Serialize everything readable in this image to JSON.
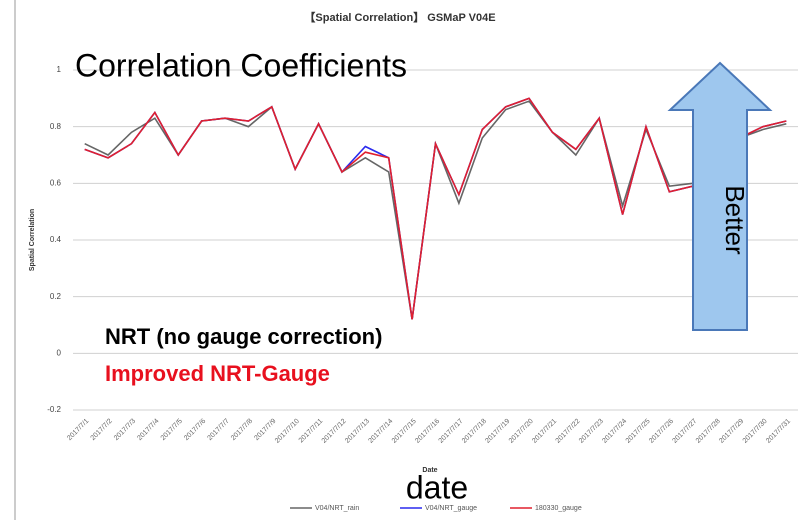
{
  "chart_data": {
    "type": "line",
    "title": "【Spatial Correlation】 GSMaP V04E",
    "y_label": "Spatial Correlation",
    "x_label": "Date",
    "categories": [
      "2017/7/1",
      "2017/7/2",
      "2017/7/3",
      "2017/7/4",
      "2017/7/5",
      "2017/7/6",
      "2017/7/7",
      "2017/7/8",
      "2017/7/9",
      "2017/7/10",
      "2017/7/11",
      "2017/7/12",
      "2017/7/13",
      "2017/7/14",
      "2017/7/15",
      "2017/7/16",
      "2017/7/17",
      "2017/7/18",
      "2017/7/19",
      "2017/7/20",
      "2017/7/21",
      "2017/7/22",
      "2017/7/23",
      "2017/7/24",
      "2017/7/25",
      "2017/7/26",
      "2017/7/27",
      "2017/7/28",
      "2017/7/29",
      "2017/7/30",
      "2017/7/31"
    ],
    "series": [
      {
        "name": "V04/NRT_rain",
        "color": "#666666",
        "values": [
          0.74,
          0.7,
          0.78,
          0.83,
          0.7,
          0.82,
          0.83,
          0.8,
          0.87,
          0.65,
          0.81,
          0.64,
          0.69,
          0.64,
          0.12,
          0.74,
          0.53,
          0.76,
          0.86,
          0.89,
          0.78,
          0.7,
          0.83,
          0.52,
          0.79,
          0.59,
          0.6,
          0.7,
          0.76,
          0.79,
          0.81
        ]
      },
      {
        "name": "V04/NRT_gauge",
        "color": "#2a2aee",
        "values": [
          0.72,
          0.69,
          0.74,
          0.85,
          0.7,
          0.82,
          0.83,
          0.82,
          0.87,
          0.65,
          0.81,
          0.64,
          0.73,
          0.69,
          0.12,
          0.74,
          0.56,
          0.79,
          0.87,
          0.9,
          0.78,
          0.72,
          0.83,
          0.49,
          0.8,
          0.57,
          0.59,
          0.7,
          0.76,
          0.8,
          0.82
        ]
      },
      {
        "name": "180330_gauge",
        "color": "#e0202e",
        "values": [
          0.72,
          0.69,
          0.74,
          0.85,
          0.7,
          0.82,
          0.83,
          0.82,
          0.87,
          0.65,
          0.81,
          0.64,
          0.71,
          0.69,
          0.12,
          0.74,
          0.56,
          0.79,
          0.87,
          0.9,
          0.78,
          0.72,
          0.83,
          0.49,
          0.8,
          0.57,
          0.59,
          0.7,
          0.76,
          0.8,
          0.82
        ]
      }
    ],
    "ylim": [
      -0.2,
      1
    ],
    "yticks": [
      -0.2,
      0,
      0.2,
      0.4,
      0.6,
      0.8,
      1
    ],
    "grid": true,
    "legend": "bottom",
    "annotations": [
      "Correlation Coefficients",
      "Better",
      "NRT (no gauge correction)",
      "Improved NRT-Gauge",
      "date"
    ]
  }
}
